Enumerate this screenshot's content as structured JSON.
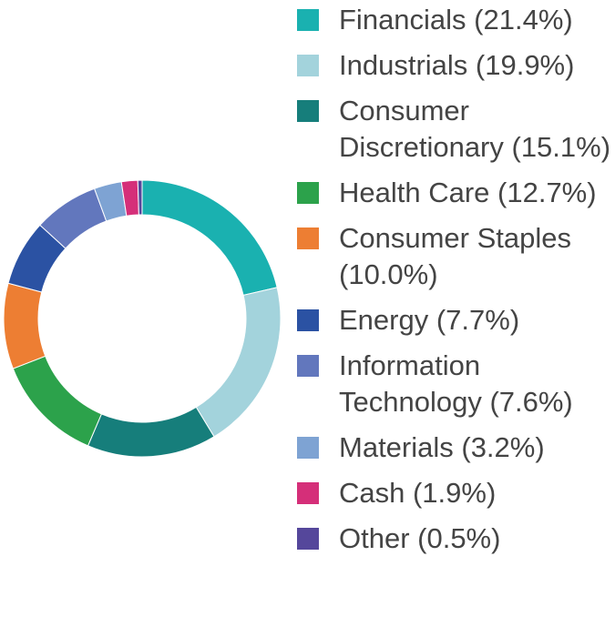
{
  "chart_data": {
    "type": "pie",
    "donut": true,
    "categories": [
      "Financials",
      "Industrials",
      "Consumer Discretionary",
      "Health Care",
      "Consumer Staples",
      "Energy",
      "Information Technology",
      "Materials",
      "Cash",
      "Other"
    ],
    "values": [
      21.4,
      19.9,
      15.1,
      12.7,
      10.0,
      7.7,
      7.6,
      3.2,
      1.9,
      0.5
    ],
    "colors": [
      "#1ab1b0",
      "#a3d3dc",
      "#167e7b",
      "#2ca24b",
      "#ed7e33",
      "#2b52a3",
      "#6277bd",
      "#7ea3d3",
      "#d52f79",
      "#55479b"
    ],
    "legend": [
      {
        "label": "Financials (21.4%)",
        "color": "#1ab1b0"
      },
      {
        "label": "Industrials (19.9%)",
        "color": "#a3d3dc"
      },
      {
        "label": "Consumer Discretionary (15.1%)",
        "color": "#167e7b"
      },
      {
        "label": "Health Care (12.7%)",
        "color": "#2ca24b"
      },
      {
        "label": "Consumer Staples (10.0%)",
        "color": "#ed7e33"
      },
      {
        "label": "Energy (7.7%)",
        "color": "#2b52a3"
      },
      {
        "label": "Information Technology (7.6%)",
        "color": "#6277bd"
      },
      {
        "label": "Materials (3.2%)",
        "color": "#7ea3d3"
      },
      {
        "label": "Cash (1.9%)",
        "color": "#d52f79"
      },
      {
        "label": "Other (0.5%)",
        "color": "#55479b"
      }
    ],
    "legend_position": "right"
  }
}
